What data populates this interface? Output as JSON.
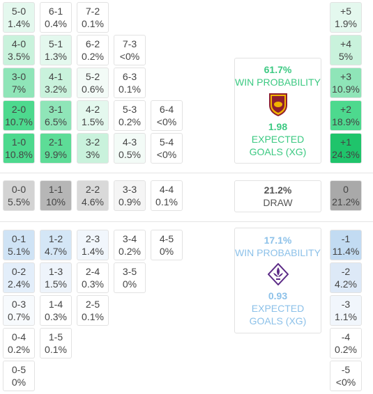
{
  "home_grid": [
    [
      {
        "score": "5-0",
        "pct": "1.4%",
        "color": "#e4f8ee"
      },
      {
        "score": "6-1",
        "pct": "0.4%",
        "color": "#ffffff"
      },
      {
        "score": "7-2",
        "pct": "0.1%",
        "color": "#ffffff"
      }
    ],
    [
      {
        "score": "4-0",
        "pct": "3.5%",
        "color": "#c9f2dc"
      },
      {
        "score": "5-1",
        "pct": "1.3%",
        "color": "#e4f8ee"
      },
      {
        "score": "6-2",
        "pct": "0.2%",
        "color": "#ffffff"
      },
      {
        "score": "7-3",
        "pct": "<0%",
        "color": "#ffffff"
      }
    ],
    [
      {
        "score": "3-0",
        "pct": "7%",
        "color": "#8fe5b8"
      },
      {
        "score": "4-1",
        "pct": "3.2%",
        "color": "#c9f2dc"
      },
      {
        "score": "5-2",
        "pct": "0.6%",
        "color": "#f3fbf7"
      },
      {
        "score": "6-3",
        "pct": "0.1%",
        "color": "#ffffff"
      }
    ],
    [
      {
        "score": "2-0",
        "pct": "10.7%",
        "color": "#4dd98e"
      },
      {
        "score": "3-1",
        "pct": "6.5%",
        "color": "#8fe5b8"
      },
      {
        "score": "4-2",
        "pct": "1.5%",
        "color": "#e4f8ee"
      },
      {
        "score": "5-3",
        "pct": "0.2%",
        "color": "#ffffff"
      },
      {
        "score": "6-4",
        "pct": "<0%",
        "color": "#ffffff"
      }
    ],
    [
      {
        "score": "1-0",
        "pct": "10.8%",
        "color": "#4dd98e"
      },
      {
        "score": "2-1",
        "pct": "9.9%",
        "color": "#5ddc97"
      },
      {
        "score": "3-2",
        "pct": "3%",
        "color": "#c9f2dc"
      },
      {
        "score": "4-3",
        "pct": "0.5%",
        "color": "#f3fbf7"
      },
      {
        "score": "5-4",
        "pct": "<0%",
        "color": "#ffffff"
      }
    ]
  ],
  "draw_row": [
    {
      "score": "0-0",
      "pct": "5.5%",
      "color": "#d3d3d3"
    },
    {
      "score": "1-1",
      "pct": "10%",
      "color": "#b6b6b6"
    },
    {
      "score": "2-2",
      "pct": "4.6%",
      "color": "#d9d9d9"
    },
    {
      "score": "3-3",
      "pct": "0.9%",
      "color": "#f5f5f5"
    },
    {
      "score": "4-4",
      "pct": "0.1%",
      "color": "#ffffff"
    }
  ],
  "away_grid": [
    [
      {
        "score": "0-1",
        "pct": "5.1%",
        "color": "#cfe3f5"
      },
      {
        "score": "1-2",
        "pct": "4.7%",
        "color": "#d4e6f6"
      },
      {
        "score": "2-3",
        "pct": "1.4%",
        "color": "#f1f6fc"
      },
      {
        "score": "3-4",
        "pct": "0.2%",
        "color": "#ffffff"
      },
      {
        "score": "4-5",
        "pct": "0%",
        "color": "#ffffff"
      }
    ],
    [
      {
        "score": "0-2",
        "pct": "2.4%",
        "color": "#e3eefa"
      },
      {
        "score": "1-3",
        "pct": "1.5%",
        "color": "#eef4fb"
      },
      {
        "score": "2-4",
        "pct": "0.3%",
        "color": "#ffffff"
      },
      {
        "score": "3-5",
        "pct": "0%",
        "color": "#ffffff"
      }
    ],
    [
      {
        "score": "0-3",
        "pct": "0.7%",
        "color": "#f7fafd"
      },
      {
        "score": "1-4",
        "pct": "0.3%",
        "color": "#ffffff"
      },
      {
        "score": "2-5",
        "pct": "0.1%",
        "color": "#ffffff"
      }
    ],
    [
      {
        "score": "0-4",
        "pct": "0.2%",
        "color": "#ffffff"
      },
      {
        "score": "1-5",
        "pct": "0.1%",
        "color": "#ffffff"
      }
    ],
    [
      {
        "score": "0-5",
        "pct": "0%",
        "color": "#ffffff"
      }
    ]
  ],
  "goal_difference": [
    {
      "label": "+5",
      "pct": "1.9%",
      "color": "#e4f8ee"
    },
    {
      "label": "+4",
      "pct": "5%",
      "color": "#c9f2dc"
    },
    {
      "label": "+3",
      "pct": "10.9%",
      "color": "#8fe5b8"
    },
    {
      "label": "+2",
      "pct": "18.9%",
      "color": "#4dd98e"
    },
    {
      "label": "+1",
      "pct": "24.3%",
      "color": "#1fc46b"
    },
    {
      "label": "0",
      "pct": "21.2%",
      "color": "#a9a9a9"
    },
    {
      "label": "-1",
      "pct": "11.4%",
      "color": "#c2dbf2"
    },
    {
      "label": "-2",
      "pct": "4.2%",
      "color": "#dde9f7"
    },
    {
      "label": "-3",
      "pct": "1.1%",
      "color": "#f1f6fc"
    },
    {
      "label": "-4",
      "pct": "0.2%",
      "color": "#ffffff"
    },
    {
      "label": "-5",
      "pct": "<0%",
      "color": "#ffffff"
    }
  ],
  "home_panel": {
    "win_pct": "61.7%",
    "win_label": "WIN PROBABILITY",
    "xg": "1.98",
    "xg_label": "EXPECTED GOALS (XG)"
  },
  "draw_panel": {
    "pct": "21.2%",
    "label": "DRAW"
  },
  "away_panel": {
    "win_pct": "17.1%",
    "win_label": "WIN PROBABILITY",
    "xg": "0.93",
    "xg_label": "EXPECTED GOALS (XG)"
  }
}
